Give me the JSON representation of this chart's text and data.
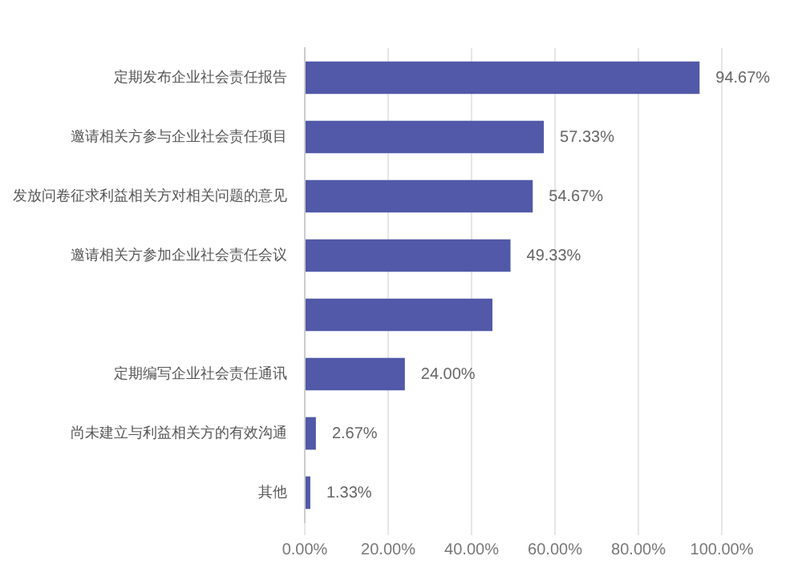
{
  "chart_data": {
    "type": "bar",
    "orientation": "horizontal",
    "categories": [
      "定期发布企业社会责任报告",
      "邀请相关方参与企业社会责任项目",
      "发放问卷征求利益相关方对相关问题的意见",
      "邀请相关方参加企业社会责任会议",
      null,
      "定期编写企业社会责任通讯",
      "尚未建立与利益相关方的有效沟通",
      "其他"
    ],
    "values": [
      94.67,
      57.33,
      54.67,
      49.33,
      45,
      24.0,
      2.67,
      1.33
    ],
    "value_labels": [
      "94.67%",
      "57.33%",
      "54.67%",
      "49.33%",
      null,
      "24.00%",
      "2.67%",
      "1.33%"
    ],
    "color": "#5159a8",
    "xlim": [
      0,
      100
    ],
    "xticks": [
      {
        "value": 0,
        "label": "0.00%"
      },
      {
        "value": 20,
        "label": "20.00%"
      },
      {
        "value": 40,
        "label": "40.00%"
      },
      {
        "value": 60,
        "label": "60.00%"
      },
      {
        "value": 80,
        "label": "80.00%"
      },
      {
        "value": 100,
        "label": "100.00%"
      }
    ],
    "grid": "x",
    "legend": false
  }
}
